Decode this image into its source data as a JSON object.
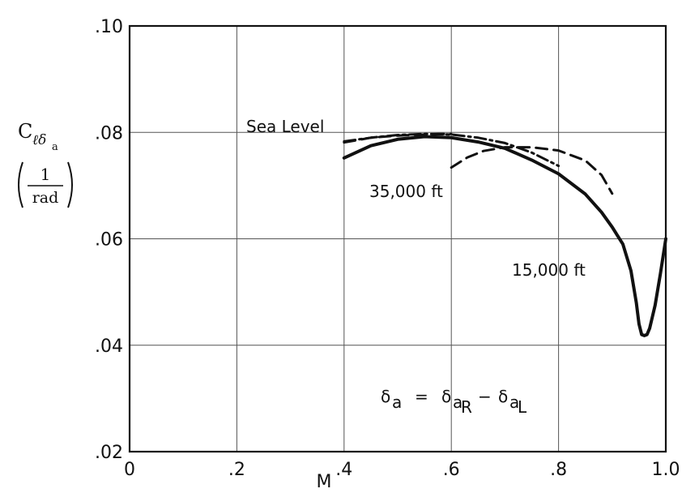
{
  "chart_data": {
    "type": "line",
    "xlabel": "M",
    "ylabel": {
      "symbol": "C",
      "subscript_main": "ℓδ",
      "subscript_sub": "a",
      "unit_numerator": "1",
      "unit_denominator": "rad"
    },
    "xlim": [
      0,
      1.0
    ],
    "ylim": [
      0.02,
      0.1
    ],
    "x_ticks": [
      0,
      0.2,
      0.4,
      0.6,
      0.8,
      1.0
    ],
    "x_tick_labels": [
      "0",
      ".2",
      ".4",
      ".6",
      ".8",
      "1.0"
    ],
    "y_ticks": [
      0.02,
      0.04,
      0.06,
      0.08,
      0.1
    ],
    "y_tick_labels": [
      ".02",
      ".04",
      ".06",
      ".08",
      ".10"
    ],
    "grid": true,
    "series": [
      {
        "name": "Sea Level",
        "style": "dashdot",
        "x": [
          0.4,
          0.45,
          0.5,
          0.55,
          0.6,
          0.65,
          0.7,
          0.75,
          0.8
        ],
        "y": [
          0.0783,
          0.079,
          0.0795,
          0.0797,
          0.0796,
          0.079,
          0.078,
          0.0762,
          0.0737
        ]
      },
      {
        "name": "35,000 ft",
        "style": "dashed",
        "segments": [
          {
            "x": [
              0.4,
              0.45,
              0.5,
              0.55,
              0.575,
              0.6
            ],
            "y": [
              0.0781,
              0.079,
              0.0794,
              0.0796,
              0.0797,
              0.0797
            ]
          },
          {
            "x": [
              0.6,
              0.63,
              0.66,
              0.7,
              0.75,
              0.8,
              0.85,
              0.88,
              0.9
            ],
            "y": [
              0.0734,
              0.0753,
              0.0765,
              0.0772,
              0.0772,
              0.0766,
              0.0747,
              0.072,
              0.0685
            ]
          }
        ]
      },
      {
        "name": "15,000 ft",
        "style": "solid",
        "x": [
          0.4,
          0.45,
          0.5,
          0.55,
          0.6,
          0.65,
          0.7,
          0.75,
          0.8,
          0.85,
          0.88,
          0.9,
          0.92,
          0.935,
          0.945,
          0.95,
          0.955,
          0.96,
          0.965,
          0.97,
          0.98,
          0.99,
          1.0
        ],
        "y": [
          0.0752,
          0.0775,
          0.0787,
          0.0792,
          0.079,
          0.0782,
          0.077,
          0.0748,
          0.0722,
          0.0684,
          0.065,
          0.0622,
          0.059,
          0.054,
          0.048,
          0.044,
          0.042,
          0.0418,
          0.042,
          0.0432,
          0.0475,
          0.0535,
          0.06
        ]
      }
    ],
    "annotations": [
      {
        "text": "Sea Level",
        "x": 0.22,
        "y": 0.0808
      },
      {
        "text": "35,000 ft",
        "x": 0.44,
        "y": 0.069
      },
      {
        "text": "15,000 ft",
        "x": 0.72,
        "y": 0.0545
      },
      {
        "text": "δa = δaR − δaL",
        "x": 0.38,
        "y": 0.0297
      }
    ],
    "equation": {
      "lhs_symbol": "δ",
      "lhs_sub": "a",
      "equals": "=",
      "r1_symbol": "δ",
      "r1_sub": "a",
      "r1_subsub": "R",
      "minus": "−",
      "r2_symbol": "δ",
      "r2_sub": "a",
      "r2_subsub": "L"
    },
    "curve_labels": {
      "sea_level": "Sea Level",
      "alt_35000": "35,000 ft",
      "alt_15000": "15,000 ft"
    }
  }
}
